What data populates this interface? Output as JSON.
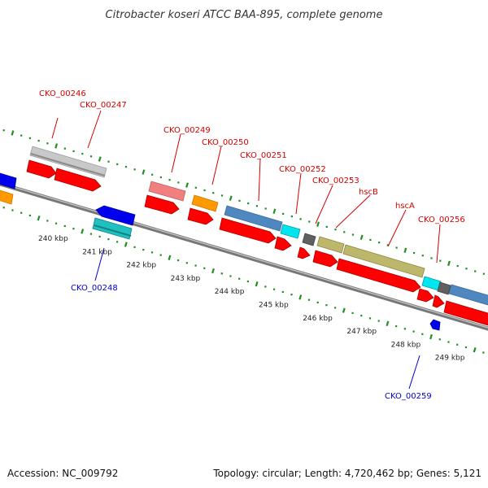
{
  "title": "Citrobacter koseri ATCC BAA-895, complete genome",
  "footer": {
    "accession": "Accession: NC_009792",
    "summary": "Topology: circular; Length: 4,720,462 bp; Genes: 5,121"
  },
  "scale": {
    "tick_labels": [
      "240 kbp",
      "241 kbp",
      "242 kbp",
      "243 kbp",
      "244 kbp",
      "245 kbp",
      "246 kbp",
      "247 kbp",
      "248 kbp",
      "249 kbp"
    ]
  },
  "gene_labels": {
    "top": [
      "CKO_00246",
      "CKO_00247",
      "CKO_00249",
      "CKO_00250",
      "CKO_00251",
      "CKO_00252",
      "CKO_00253",
      "hscB",
      "hscA",
      "CKO_00256"
    ],
    "bottom": [
      "CKO_00248",
      "CKO_00259"
    ]
  },
  "colors": {
    "label_forward": "#d40000",
    "label_reverse": "#0000cc",
    "cds_red": "#ff0000",
    "cds_blue": "#0000ee",
    "feature_gray": "#c8c8c8",
    "feature_pink": "#f08080",
    "feature_orange": "#ff9900",
    "feature_steelblue": "#4f88c0",
    "feature_cyan": "#00e5ee",
    "feature_cyan_dark": "#20c0c0",
    "feature_darkgray": "#606060",
    "feature_olive": "#bdb76b",
    "backbone": "#888888",
    "ticks": "#1f8f1f"
  }
}
